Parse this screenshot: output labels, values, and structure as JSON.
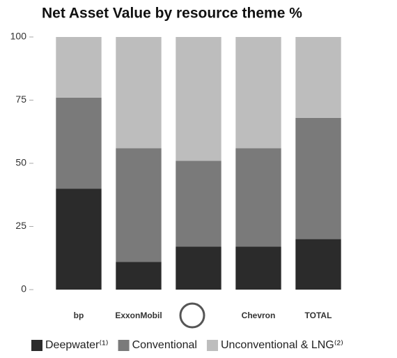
{
  "chart_data": {
    "type": "stacked_bar",
    "title": "Net Asset Value by resource theme %",
    "categories": [
      "bp",
      "ExxonMobil",
      null,
      "Chevron",
      "TOTAL"
    ],
    "series": [
      {
        "name": "Deepwater⁽¹⁾",
        "color": "#2b2b2b",
        "values": [
          40,
          11,
          17,
          17,
          20
        ]
      },
      {
        "name": "Conventional",
        "color": "#7a7a7a",
        "values": [
          36,
          45,
          34,
          39,
          48
        ]
      },
      {
        "name": "Unconventional & LNG⁽²⁾",
        "color": "#bdbdbd",
        "values": [
          24,
          44,
          49,
          44,
          32
        ]
      }
    ],
    "ylim": [
      0,
      100
    ],
    "yticks": [
      0,
      25,
      50,
      75,
      100
    ],
    "grid": false,
    "legend": "bottom"
  }
}
